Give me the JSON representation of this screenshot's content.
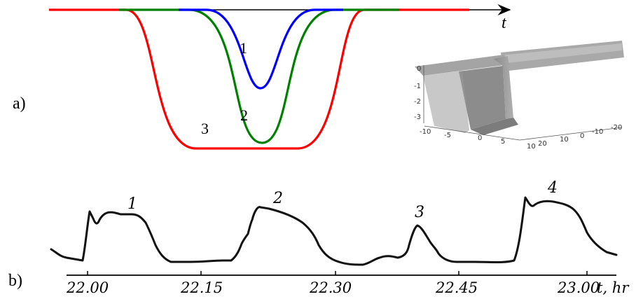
{
  "panel_a": {
    "label": "a)",
    "axis_label": "t",
    "curves": [
      {
        "label": "1",
        "color": "#0000ff",
        "depth": 1
      },
      {
        "label": "2",
        "color": "#008000",
        "depth": 2
      },
      {
        "label": "3",
        "color": "#ff0000",
        "depth": 2
      }
    ],
    "inset_3d": {
      "z_ticks": [
        "0",
        "-1",
        "-2",
        "-3"
      ],
      "x_ticks": [
        "-10",
        "-5",
        "0",
        "5",
        "10"
      ],
      "y_ticks": [
        "20",
        "10",
        "0",
        "-10",
        "-20"
      ],
      "surface_color": "#9a9a9a"
    }
  },
  "panel_b": {
    "label": "b)",
    "axis_label": "t, hr",
    "x_ticks": [
      "22.00",
      "22.15",
      "22.30",
      "22.45",
      "23.00"
    ],
    "pulse_labels": [
      "1",
      "2",
      "3",
      "4"
    ]
  }
}
